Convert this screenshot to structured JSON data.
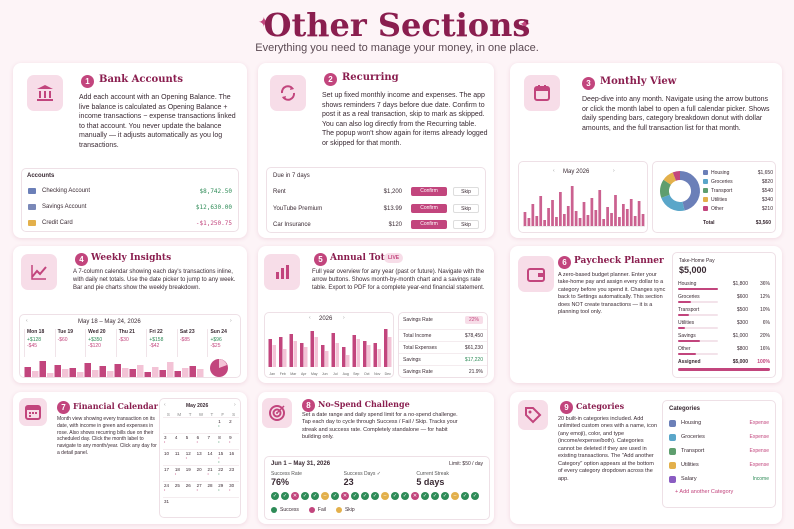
{
  "header": {
    "title": "Other Sections",
    "subtitle": "Everything you need to manage your money, in one place."
  },
  "colors": {
    "accent": "#c2457d",
    "title": "#8a1e4f",
    "income": "#2e8b57",
    "tint": "#f7dde8"
  },
  "cards": [
    {
      "num": "1",
      "title": "Bank Accounts",
      "icon": "bank-icon",
      "desc": "Add each account with an Opening Balance. The live balance is calculated as Opening Balance + income transactions − expense transactions linked to that account. You never update the balance manually — it adjusts automatically as you log transactions."
    },
    {
      "num": "2",
      "title": "Recurring",
      "icon": "repeat-icon",
      "desc": "Set up fixed monthly income and expenses. The app shows reminders 7 days before due date. Confirm to post it as a real transaction, skip to mark as skipped. You can also log directly from the Recurring table. The popup won't show again for items already logged or skipped for that month."
    },
    {
      "num": "3",
      "title": "Monthly View",
      "icon": "calendar-icon",
      "desc": "Deep-dive into any month. Navigate using the arrow buttons or click the month label to open a full calendar picker. Shows daily spending bars, category breakdown donut with dollar amounts, and the full transaction list for that month."
    },
    {
      "num": "4",
      "title": "Weekly Insights",
      "icon": "trend-icon",
      "desc": "A 7-column calendar showing each day's transactions inline, with daily net totals. Use the date picker to jump to any week. Bar and pie charts show the weekly breakdown."
    },
    {
      "num": "5",
      "title": "Annual Totals",
      "icon": "bar-chart-icon",
      "badge": "LIVE",
      "desc": "Full year overview for any year (past or future). Navigate with the arrow buttons. Shows month-by-month chart and a savings rate table. Export to PDF for a complete year-end financial statement."
    },
    {
      "num": "6",
      "title": "Paycheck Planner",
      "icon": "wallet-icon",
      "desc": "A zero-based budget planner. Enter your take-home pay and assign every dollar to a category before you spend it. Changes sync back to Settings automatically. This section does NOT create transactions — it is a planning tool only."
    },
    {
      "num": "7",
      "title": "Financial Calendar",
      "icon": "calendar-grid-icon",
      "desc": "Month view showing every transaction on its date, with income in green and expenses in rose. Also shows recurring bills due on their scheduled day. Click the month label to navigate to any month/year. Click any day for a detail panel."
    },
    {
      "num": "8",
      "title": "No-Spend Challenge",
      "icon": "target-icon",
      "desc": "Set a date range and daily spend limit for a no-spend challenge. Tap each day to cycle through Success / Fail / Skip. Tracks your streak and success rate. Completely standalone — for habit building only."
    },
    {
      "num": "9",
      "title": "Categories",
      "icon": "tag-icon",
      "desc": "20 built-in categories included. Add unlimited custom ones with a name, icon (any emoji), color, and type (income/expense/both). Categories cannot be deleted if they are used in existing transactions. The \"Add another Category\" option appears at the bottom of every category dropdown across the app."
    }
  ],
  "accounts": {
    "header": "Accounts",
    "rows": [
      {
        "name": "Checking Account",
        "amount": "$8,742.50",
        "kind": "pos"
      },
      {
        "name": "Savings Account",
        "amount": "$12,630.00",
        "kind": "pos"
      },
      {
        "name": "Credit Card",
        "amount": "-$1,250.75",
        "kind": "neg"
      }
    ]
  },
  "recurring": {
    "header": "Due in 7 days",
    "confirm": "Confirm",
    "skip": "Skip",
    "rows": [
      {
        "name": "Rent",
        "amount": "$1,200"
      },
      {
        "name": "YouTube Premium",
        "amount": "$13.99"
      },
      {
        "name": "Car Insurance",
        "amount": "$120"
      }
    ]
  },
  "monthly": {
    "month": "May 2026",
    "legend": [
      {
        "name": "Housing",
        "amount": "$1,650",
        "color": "#6b7fb8"
      },
      {
        "name": "Groceries",
        "amount": "$820",
        "color": "#5aa6c9"
      },
      {
        "name": "Transport",
        "amount": "$540",
        "color": "#5e9e6e"
      },
      {
        "name": "Utilities",
        "amount": "$340",
        "color": "#e3b04b"
      },
      {
        "name": "Other",
        "amount": "$210",
        "color": "#c2457d"
      }
    ],
    "total_label": "Total",
    "total": "$3,560"
  },
  "weekly": {
    "range": "May 18 – May 24, 2026",
    "days": [
      {
        "label": "Mon 18",
        "vals": [
          "+$128",
          "-$45"
        ]
      },
      {
        "label": "Tue 19",
        "vals": [
          "-$60"
        ]
      },
      {
        "label": "Wed 20",
        "vals": [
          "+$350",
          "-$120"
        ]
      },
      {
        "label": "Thu 21",
        "vals": [
          "-$30"
        ]
      },
      {
        "label": "Fri 22",
        "vals": [
          "+$158",
          "-$42"
        ]
      },
      {
        "label": "Sat 23",
        "vals": [
          "-$85"
        ]
      },
      {
        "label": "Sun 24",
        "vals": [
          "+$96",
          "-$25"
        ]
      }
    ]
  },
  "annual": {
    "year": "2026",
    "months": [
      "Jan",
      "Feb",
      "Mar",
      "Apr",
      "May",
      "Jun",
      "Jul",
      "Aug",
      "Sep",
      "Oct",
      "Nov",
      "Dec"
    ],
    "table_header": "Savings Rate",
    "table_header_val": "22%",
    "rows": [
      {
        "label": "Total Income",
        "value": "$78,450",
        "kind": ""
      },
      {
        "label": "Total Expenses",
        "value": "$61,230",
        "kind": ""
      },
      {
        "label": "Savings",
        "value": "$17,220",
        "kind": "pos"
      },
      {
        "label": "Savings Rate",
        "value": "21.9%",
        "kind": ""
      }
    ]
  },
  "paycheck": {
    "take_home_label": "Take-Home Pay",
    "take_home": "$5,000",
    "rows": [
      {
        "name": "Housing",
        "a": "$1,800",
        "b": "36%",
        "fill": 0.36
      },
      {
        "name": "Groceries",
        "a": "$600",
        "b": "12%",
        "fill": 0.12
      },
      {
        "name": "Transport",
        "a": "$500",
        "b": "10%",
        "fill": 0.1
      },
      {
        "name": "Utilities",
        "a": "$300",
        "b": "6%",
        "fill": 0.06
      },
      {
        "name": "Savings",
        "a": "$1,000",
        "b": "20%",
        "fill": 0.2
      },
      {
        "name": "Other",
        "a": "$800",
        "b": "16%",
        "fill": 0.16
      }
    ],
    "assigned_label": "Assigned",
    "assigned": "$5,000",
    "assigned_pct": "100%"
  },
  "calendar": {
    "month": "May 2026",
    "weekdays": [
      "S",
      "M",
      "T",
      "W",
      "T",
      "F",
      "S"
    ],
    "days": [
      "",
      "",
      "",
      "",
      "",
      "1",
      "2",
      "3",
      "4",
      "5",
      "6",
      "7",
      "8",
      "9",
      "10",
      "11",
      "12",
      "13",
      "14",
      "15",
      "16",
      "17",
      "18",
      "19",
      "20",
      "21",
      "22",
      "23",
      "24",
      "25",
      "26",
      "27",
      "28",
      "29",
      "30",
      "31",
      "",
      "",
      "",
      "",
      "",
      ""
    ]
  },
  "challenge": {
    "range": "Jun 1 – May 31, 2026",
    "limit": "Limit: $50 / day",
    "stats": [
      {
        "label": "Success Rate",
        "value": "76%"
      },
      {
        "label": "Success Days ✓",
        "value": "23"
      },
      {
        "label": "Current Streak",
        "value": "5 days"
      }
    ],
    "legend": [
      "Success",
      "Fail",
      "Skip"
    ]
  },
  "categories": {
    "header": "Categories",
    "rows": [
      {
        "name": "Housing",
        "type": "Expense",
        "color": "#6b7fb8"
      },
      {
        "name": "Groceries",
        "type": "Expense",
        "color": "#5aa6c9"
      },
      {
        "name": "Transport",
        "type": "Expense",
        "color": "#5e9e6e"
      },
      {
        "name": "Utilities",
        "type": "Expense",
        "color": "#e3b04b"
      },
      {
        "name": "Salary",
        "type": "Income",
        "color": "#8a5cc2"
      }
    ],
    "add_label": "+ Add another Category"
  }
}
